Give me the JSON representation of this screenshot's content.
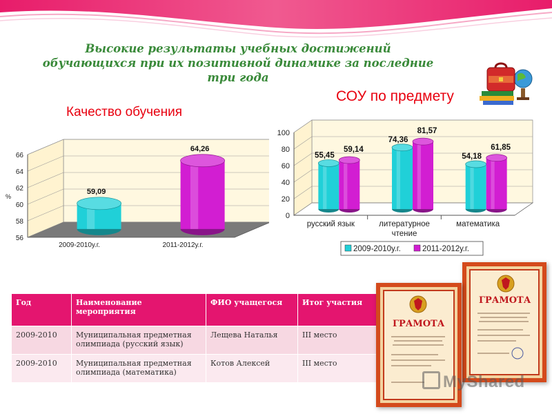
{
  "slide_title": [
    "Высокие результаты учебных достижений",
    "обучающихся при их позитивной динамике за последние",
    "три года"
  ],
  "colors": {
    "cyan": "#20d0d8",
    "magenta": "#d21ed2",
    "pink_header": "#e4156f",
    "title_green": "#3a8a3a",
    "chart_title_red": "#e8000f"
  },
  "chart_data": [
    {
      "type": "bar",
      "title": "Качество обучения",
      "ylabel": "%",
      "categories": [
        "2009-2010у.г.",
        "2011-2012у.г."
      ],
      "values": [
        59.09,
        64.26
      ],
      "value_labels": [
        "59,09",
        "64,26"
      ],
      "ylim": [
        56,
        66
      ],
      "yticks": [
        "56",
        "58",
        "60",
        "62",
        "64",
        "66"
      ],
      "grid": true
    },
    {
      "type": "bar",
      "title": "СОУ по предмету",
      "categories": [
        "русский язык",
        "литературное чтение",
        "математика"
      ],
      "category_lines": [
        [
          "русский язык"
        ],
        [
          "литературное",
          "чтение"
        ],
        [
          "математика"
        ]
      ],
      "series": [
        {
          "name": "2009-2010у.г.",
          "values": [
            55.45,
            74.36,
            54.18
          ],
          "labels": [
            "55,45",
            "74,36",
            "54,18"
          ],
          "color": "#20d0d8"
        },
        {
          "name": "2011-2012у.г.",
          "values": [
            59.14,
            81.57,
            61.85
          ],
          "labels": [
            "59,14",
            "81,57",
            "61,85"
          ],
          "color": "#d21ed2"
        }
      ],
      "ylim": [
        0,
        100
      ],
      "yticks": [
        "0",
        "20",
        "40",
        "60",
        "80",
        "100"
      ],
      "legend": "bottom",
      "grid": true
    }
  ],
  "table": {
    "headers": [
      "Год",
      "Наименование мероприятия",
      "ФИО учащегося",
      "Итог участия"
    ],
    "rows": [
      [
        "2009-2010",
        "Муниципальная предметная олимпиада (русский язык)",
        "Лещева Наталья",
        "III место"
      ],
      [
        "2009-2010",
        "Муниципальная предметная олимпиада (математика)",
        "Котов Алексей",
        "III место"
      ]
    ]
  },
  "certificates": {
    "heading": "ГРАМОТА"
  },
  "watermark": "MyShared",
  "icons": [
    "school-bag-icon",
    "globe-icon",
    "books-icon",
    "emblem-icon"
  ]
}
